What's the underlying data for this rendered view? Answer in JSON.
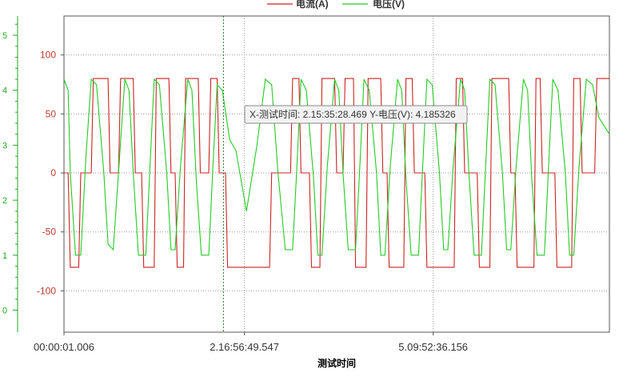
{
  "chart_data": {
    "type": "line",
    "title": "",
    "xlabel": "测试时间",
    "ylabel": "",
    "x_ticks": [
      "00:00:01.006",
      "2.16:56:49.547",
      "5.09:52:36.156"
    ],
    "x_range": [
      0,
      26
    ],
    "legend": {
      "placement": "top-center",
      "entries": [
        {
          "name": "电流(A)",
          "color": "#cc2222"
        },
        {
          "name": "电压(V)",
          "color": "#22cc22"
        }
      ]
    },
    "y_left": {
      "label": "电压(V)",
      "ticks": [
        0,
        1,
        2,
        3,
        4,
        5
      ],
      "range": [
        -0.4,
        5.35
      ],
      "color": "#22aa22"
    },
    "y_right": {
      "label": "电流(A)",
      "ticks": [
        100,
        50,
        0,
        -50,
        -100
      ],
      "range": [
        -135,
        133
      ],
      "color": "#cc2222"
    },
    "grid": true,
    "cursor": {
      "x": 7.6,
      "y_voltage": 4.185326
    },
    "tooltip": "X-测试时间: 2.15:35:28.469  Y-电压(V): 4.185326",
    "series": [
      {
        "name": "电流(A)",
        "axis": "right",
        "color": "#cc2222",
        "x": [
          0,
          0.2,
          0.3,
          0.5,
          0.7,
          0.8,
          1.3,
          1.4,
          2.1,
          2.2,
          2.6,
          2.7,
          3.3,
          3.4,
          3.7,
          3.8,
          4.3,
          4.4,
          5.0,
          5.1,
          5.3,
          5.4,
          5.7,
          5.8,
          6.4,
          6.5,
          6.9,
          7.0,
          7.3,
          7.4,
          7.6,
          7.7,
          7.8,
          7.9,
          8.6,
          8.7,
          9.8,
          9.9,
          10.8,
          10.9,
          11.2,
          11.3,
          11.7,
          11.8,
          12.2,
          12.3,
          12.9,
          13.0,
          13.3,
          13.4,
          13.8,
          13.9,
          14.4,
          14.5,
          15.1,
          15.2,
          15.4,
          15.5,
          16.2,
          16.3,
          16.6,
          16.7,
          17.2,
          17.3,
          18.6,
          18.7,
          19.0,
          19.1,
          19.7,
          19.8,
          20.3,
          20.4,
          21.2,
          21.3,
          21.5,
          21.6,
          22.4,
          22.5,
          22.7,
          22.8,
          23.4,
          23.5,
          24.2,
          24.3,
          24.6,
          24.7,
          25.3,
          25.4,
          26
        ],
        "y": [
          0,
          0,
          -80,
          -80,
          -80,
          0,
          0,
          80,
          80,
          0,
          0,
          80,
          80,
          0,
          0,
          -80,
          -80,
          80,
          80,
          0,
          0,
          -80,
          -80,
          80,
          80,
          0,
          0,
          80,
          80,
          0,
          0,
          0,
          -80,
          -80,
          -80,
          -80,
          -80,
          0,
          0,
          80,
          80,
          0,
          0,
          -80,
          -80,
          80,
          80,
          0,
          0,
          80,
          80,
          -80,
          -80,
          80,
          80,
          0,
          0,
          -80,
          -80,
          80,
          80,
          0,
          0,
          -80,
          -80,
          80,
          80,
          0,
          0,
          -80,
          -80,
          80,
          80,
          0,
          0,
          -80,
          -80,
          80,
          80,
          0,
          0,
          -80,
          -80,
          80,
          80,
          0,
          0,
          80,
          80
        ]
      },
      {
        "name": "电压(V)",
        "axis": "left",
        "color": "#22cc22",
        "x": [
          0,
          0.2,
          0.3,
          0.55,
          0.8,
          1.05,
          1.3,
          1.55,
          1.9,
          2.1,
          2.35,
          2.6,
          2.9,
          3.1,
          3.3,
          3.55,
          3.9,
          4.1,
          4.3,
          4.55,
          4.9,
          5.1,
          5.3,
          5.55,
          5.9,
          6.1,
          6.3,
          6.55,
          6.9,
          7.1,
          7.3,
          7.55,
          7.9,
          8.2,
          8.7,
          9.2,
          9.6,
          9.9,
          10.2,
          10.55,
          10.9,
          11.1,
          11.3,
          11.55,
          11.9,
          12.1,
          12.3,
          12.55,
          12.9,
          13.1,
          13.3,
          13.55,
          13.9,
          14.1,
          14.3,
          14.55,
          14.9,
          15.1,
          15.3,
          15.55,
          15.9,
          16.1,
          16.3,
          16.55,
          16.9,
          17.1,
          17.3,
          17.55,
          17.9,
          18.1,
          18.3,
          18.55,
          18.9,
          19.1,
          19.3,
          19.55,
          19.9,
          20.1,
          20.3,
          20.55,
          20.9,
          21.1,
          21.3,
          21.55,
          21.9,
          22.1,
          22.3,
          22.55,
          22.9,
          23.1,
          23.3,
          23.55,
          23.9,
          24.1,
          24.3,
          24.55,
          24.9,
          25.2,
          25.5,
          26
        ],
        "y": [
          4.2,
          4.0,
          2.5,
          1.0,
          1.0,
          2.8,
          4.2,
          4.1,
          2.5,
          1.2,
          1.1,
          2.5,
          4.2,
          4.0,
          2.5,
          1.0,
          1.0,
          2.6,
          4.2,
          4.1,
          2.5,
          1.1,
          1.1,
          2.6,
          4.2,
          4.0,
          2.4,
          1.0,
          1.0,
          2.6,
          4.1,
          4.0,
          3.1,
          2.9,
          1.8,
          3.0,
          4.2,
          4.1,
          2.5,
          1.1,
          1.1,
          2.6,
          4.2,
          4.0,
          2.4,
          1.0,
          1.0,
          2.6,
          4.2,
          4.0,
          2.5,
          1.1,
          1.1,
          2.6,
          4.2,
          4.0,
          2.5,
          1.0,
          1.0,
          2.6,
          4.2,
          4.0,
          2.4,
          1.0,
          1.0,
          2.6,
          4.2,
          4.1,
          2.5,
          1.1,
          1.1,
          2.6,
          4.2,
          4.0,
          2.5,
          1.0,
          1.0,
          2.6,
          4.2,
          4.1,
          2.5,
          1.1,
          1.1,
          2.6,
          4.2,
          4.0,
          2.4,
          1.0,
          1.0,
          2.6,
          4.2,
          4.0,
          2.5,
          1.0,
          1.0,
          2.6,
          4.2,
          4.1,
          3.5,
          3.2
        ]
      }
    ]
  }
}
